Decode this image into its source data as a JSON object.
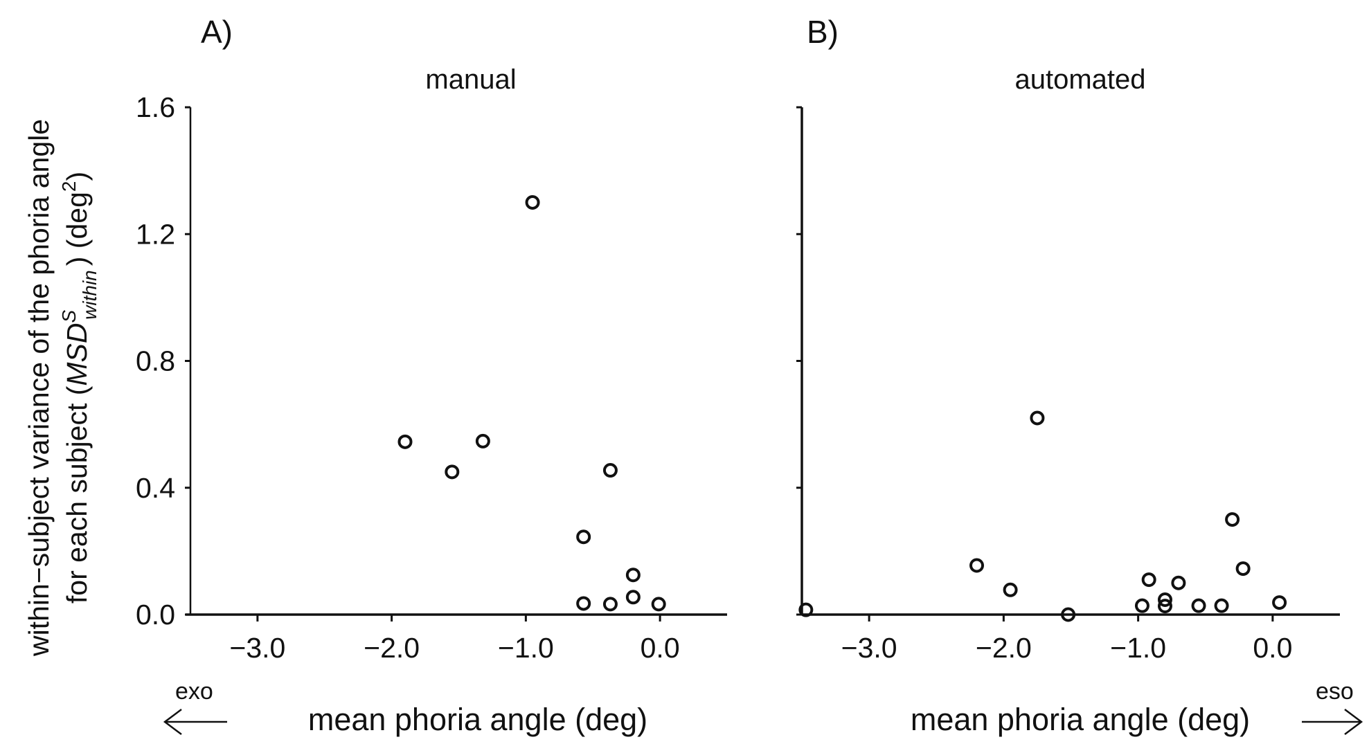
{
  "figure": {
    "ylabel_line1": "within−subject variance of the phoria angle",
    "ylabel_line2_prefix": "for each subject (",
    "ylabel_symbol": "MSD",
    "ylabel_superscript": "S",
    "ylabel_subscript": "within",
    "ylabel_line2_suffix": ") (deg",
    "ylabel_unit_power": "2",
    "ylabel_close": ")",
    "exo_label": "exo",
    "eso_label": "eso"
  },
  "chart_data": [
    {
      "type": "scatter",
      "panel_letter": "A)",
      "title": "manual",
      "xlabel": "mean phoria angle (deg)",
      "xlim": [
        -3.5,
        0.5
      ],
      "ylim": [
        0,
        1.6
      ],
      "x_ticks": [
        -3.0,
        -2.0,
        -1.0,
        0.0
      ],
      "x_tick_labels": [
        "−3.0",
        "−2.0",
        "−1.0",
        "0.0"
      ],
      "y_ticks": [
        0.0,
        0.4,
        0.8,
        1.2,
        1.6
      ],
      "y_tick_labels": [
        "0.0",
        "0.4",
        "0.8",
        "1.2",
        "1.6"
      ],
      "grid": false,
      "marker": "open-circle",
      "points": [
        {
          "x": -0.95,
          "y": 1.3
        },
        {
          "x": -1.9,
          "y": 0.545
        },
        {
          "x": -1.32,
          "y": 0.547
        },
        {
          "x": -1.55,
          "y": 0.45
        },
        {
          "x": -0.37,
          "y": 0.455
        },
        {
          "x": -0.57,
          "y": 0.245
        },
        {
          "x": -0.2,
          "y": 0.125
        },
        {
          "x": -0.2,
          "y": 0.055
        },
        {
          "x": -0.57,
          "y": 0.035
        },
        {
          "x": -0.37,
          "y": 0.033
        },
        {
          "x": -0.01,
          "y": 0.033
        }
      ]
    },
    {
      "type": "scatter",
      "panel_letter": "B)",
      "title": "automated",
      "xlabel": "mean phoria angle (deg)",
      "xlim": [
        -3.5,
        0.5
      ],
      "ylim": [
        0,
        1.6
      ],
      "x_ticks": [
        -3.0,
        -2.0,
        -1.0,
        0.0
      ],
      "x_tick_labels": [
        "−3.0",
        "−2.0",
        "−1.0",
        "0.0"
      ],
      "y_ticks": [
        0.0,
        0.4,
        0.8,
        1.2,
        1.6
      ],
      "y_tick_labels": [],
      "grid": false,
      "marker": "open-circle",
      "points": [
        {
          "x": -1.75,
          "y": 0.62
        },
        {
          "x": -0.3,
          "y": 0.3
        },
        {
          "x": -2.2,
          "y": 0.155
        },
        {
          "x": -0.22,
          "y": 0.145
        },
        {
          "x": -0.92,
          "y": 0.11
        },
        {
          "x": -0.7,
          "y": 0.1
        },
        {
          "x": -1.95,
          "y": 0.078
        },
        {
          "x": -0.8,
          "y": 0.047
        },
        {
          "x": 0.05,
          "y": 0.038
        },
        {
          "x": -0.97,
          "y": 0.028
        },
        {
          "x": -0.8,
          "y": 0.027
        },
        {
          "x": -0.55,
          "y": 0.028
        },
        {
          "x": -0.38,
          "y": 0.028
        },
        {
          "x": -3.47,
          "y": 0.015
        },
        {
          "x": -1.52,
          "y": 0.0
        }
      ]
    }
  ]
}
